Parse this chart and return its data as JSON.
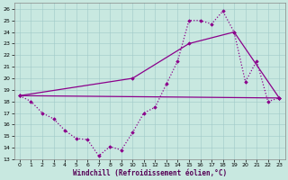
{
  "xlabel": "Windchill (Refroidissement éolien,°C)",
  "background_color": "#c8e8e0",
  "line_color": "#8b008b",
  "xlim": [
    -0.5,
    23.5
  ],
  "ylim": [
    13,
    26.5
  ],
  "yticks": [
    13,
    14,
    15,
    16,
    17,
    18,
    19,
    20,
    21,
    22,
    23,
    24,
    25,
    26
  ],
  "xticks": [
    0,
    1,
    2,
    3,
    4,
    5,
    6,
    7,
    8,
    9,
    10,
    11,
    12,
    13,
    14,
    15,
    16,
    17,
    18,
    19,
    20,
    21,
    22,
    23
  ],
  "series": [
    {
      "style": "dotted",
      "x": [
        0,
        1,
        2,
        3,
        4,
        5,
        6,
        7,
        8,
        9,
        10,
        11,
        12,
        13,
        14,
        15,
        16,
        17,
        18,
        19,
        20,
        21,
        22,
        23
      ],
      "y": [
        18.5,
        18.0,
        17.0,
        16.5,
        15.5,
        14.8,
        14.7,
        13.3,
        14.1,
        13.8,
        15.3,
        17.0,
        17.5,
        19.5,
        21.5,
        25.0,
        25.0,
        24.7,
        25.8,
        24.0,
        19.7,
        21.5,
        18.0,
        18.3
      ]
    },
    {
      "style": "solid",
      "x": [
        0,
        23
      ],
      "y": [
        18.5,
        18.3
      ]
    },
    {
      "style": "solid",
      "x": [
        0,
        10,
        15,
        19,
        23
      ],
      "y": [
        18.5,
        20.0,
        23.0,
        24.0,
        18.3
      ]
    }
  ]
}
